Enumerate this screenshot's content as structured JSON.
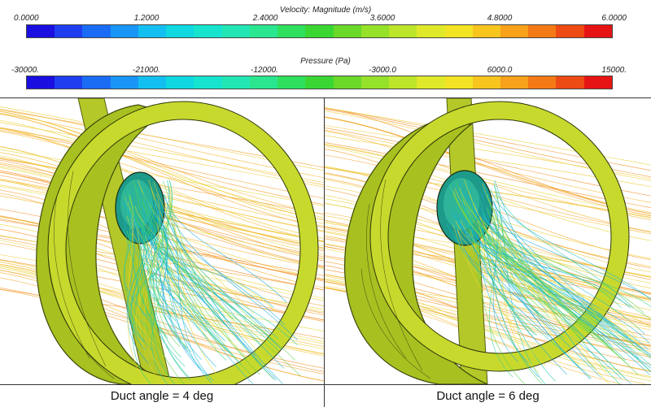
{
  "velocity_legend": {
    "title": "Velocity: Magnitude (m/s)",
    "ticks": [
      "0.0000",
      "1.2000",
      "2.4000",
      "3.6000",
      "4.8000",
      "6.0000"
    ]
  },
  "pressure_legend": {
    "title": "Pressure (Pa)",
    "ticks": [
      "-30000.",
      "-21000.",
      "-12000.",
      "-3000.0",
      "6000.0",
      "15000."
    ]
  },
  "colormap": [
    "#1a0fe0",
    "#1e3ef0",
    "#1a6cf5",
    "#1996f5",
    "#13bff0",
    "#0fd8e0",
    "#16e4cf",
    "#22e6b4",
    "#2ae68f",
    "#2ee05e",
    "#3ad734",
    "#6ad92a",
    "#96e12a",
    "#bde52a",
    "#dfe92a",
    "#f3e325",
    "#f8c41e",
    "#f8a11a",
    "#f47a16",
    "#ee4a14",
    "#e61414"
  ],
  "panels": [
    {
      "caption": "Duct angle = 4 deg"
    },
    {
      "caption": "Duct angle = 6 deg"
    }
  ]
}
